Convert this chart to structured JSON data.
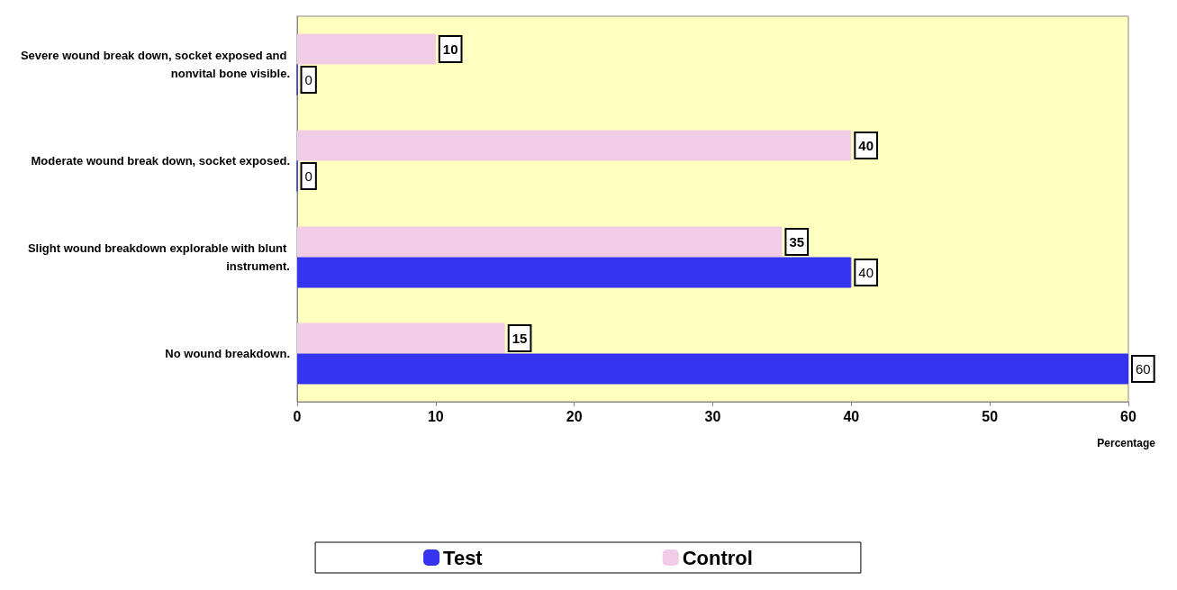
{
  "chart_data": {
    "type": "bar",
    "orientation": "horizontal",
    "xlabel": "Percentage",
    "categories": [
      "Severe wound break down, socket exposed and nonvital bone visible.",
      "Moderate wound break down, socket exposed.",
      "Slight wound breakdown explorable with blunt instrument.",
      "No wound breakdown."
    ],
    "series": [
      {
        "name": "Control",
        "color": "#f2cce6",
        "values": [
          10,
          40,
          35,
          15
        ]
      },
      {
        "name": "Test",
        "color": "#3535f0",
        "values": [
          0,
          0,
          40,
          60
        ]
      }
    ],
    "xlim": [
      0,
      60
    ],
    "xticks": [
      0,
      10,
      20,
      30,
      40,
      50,
      60
    ],
    "data_labels": true,
    "grid": false,
    "legend": "bottom"
  }
}
